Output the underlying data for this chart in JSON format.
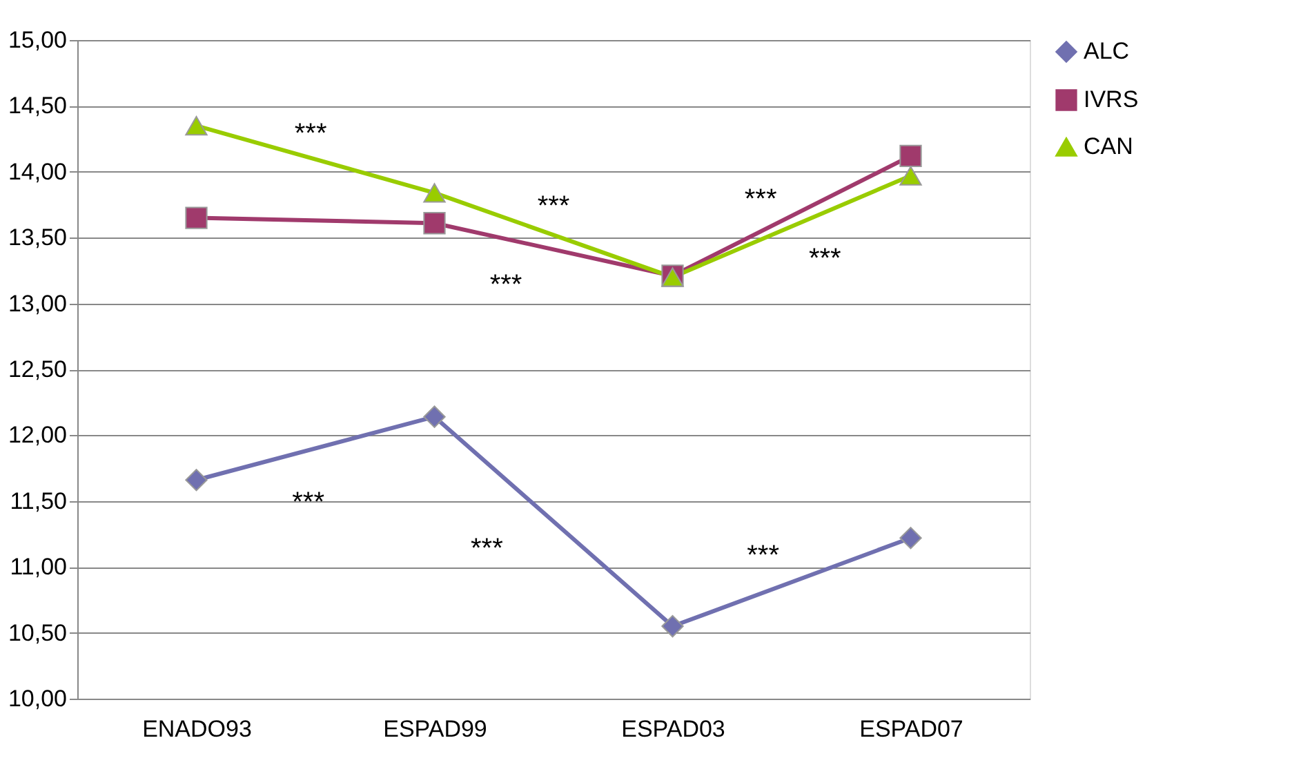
{
  "chart_data": {
    "type": "line",
    "categories": [
      "ENADO93",
      "ESPAD99",
      "ESPAD03",
      "ESPAD07"
    ],
    "series": [
      {
        "name": "ALC",
        "color": "#7070b0",
        "marker": "diamond",
        "values": [
          11.66,
          12.14,
          10.55,
          11.22
        ]
      },
      {
        "name": "IVRS",
        "color": "#a03a6c",
        "marker": "square",
        "values": [
          13.65,
          13.61,
          13.21,
          14.12
        ]
      },
      {
        "name": "CAN",
        "color": "#99cc00",
        "marker": "triangle",
        "values": [
          14.35,
          13.84,
          13.2,
          13.97
        ]
      }
    ],
    "ylim": [
      10,
      15
    ],
    "yticks": [
      {
        "value": 10,
        "label": "10,00"
      },
      {
        "value": 10.5,
        "label": "10,50"
      },
      {
        "value": 11,
        "label": "11,00"
      },
      {
        "value": 11.5,
        "label": "11,50"
      },
      {
        "value": 12,
        "label": "12,00"
      },
      {
        "value": 12.5,
        "label": "12,50"
      },
      {
        "value": 13,
        "label": "13,00"
      },
      {
        "value": 13.5,
        "label": "13,50"
      },
      {
        "value": 14,
        "label": "14,00"
      },
      {
        "value": 14.5,
        "label": "14,50"
      },
      {
        "value": 15,
        "label": "15,00"
      }
    ],
    "grid": "y",
    "legend": "right",
    "line_style": "solid",
    "annotations": [
      "***",
      "***",
      "***",
      "***",
      "***",
      "***",
      "***",
      "***"
    ]
  }
}
